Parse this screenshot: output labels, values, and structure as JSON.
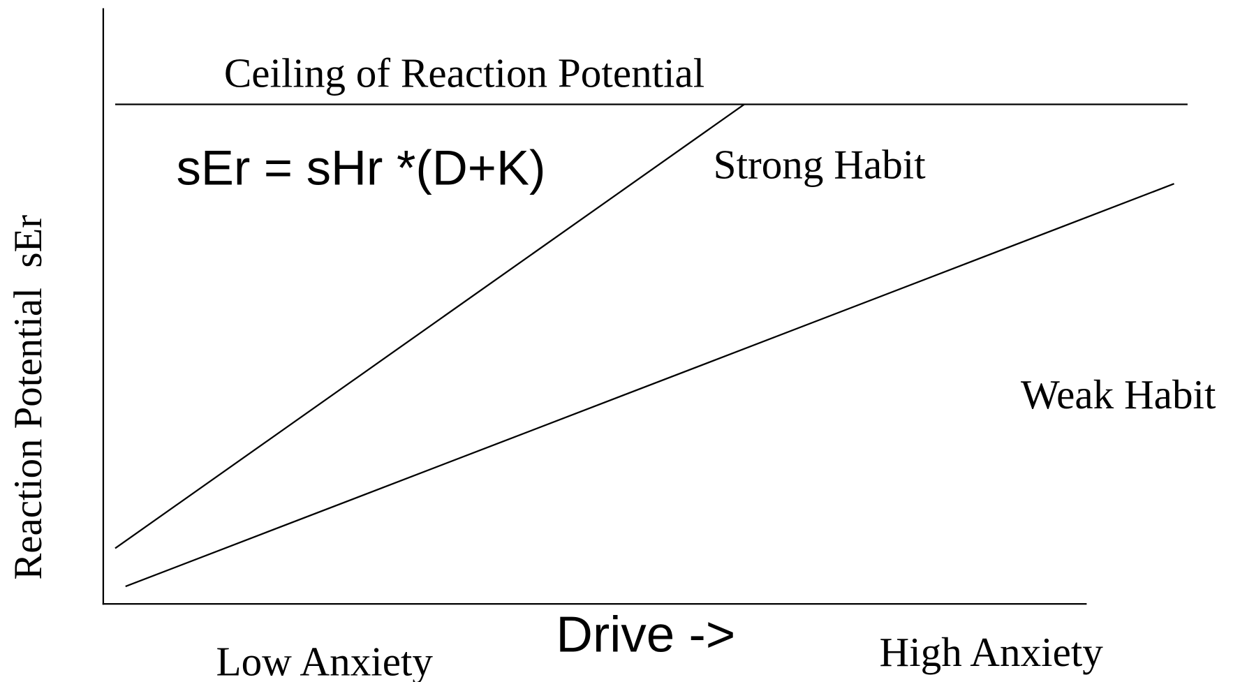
{
  "diagram": {
    "y_axis_label": "Reaction Potential  sEr",
    "x_axis_label": "Drive ->",
    "x_low_label": "Low Anxiety",
    "x_high_label": "High Anxiety",
    "ceiling_label": "Ceiling of Reaction Potential",
    "formula": "sEr = sHr *(D+K)",
    "strong_label": "Strong Habit",
    "weak_label": "Weak Habit"
  }
}
